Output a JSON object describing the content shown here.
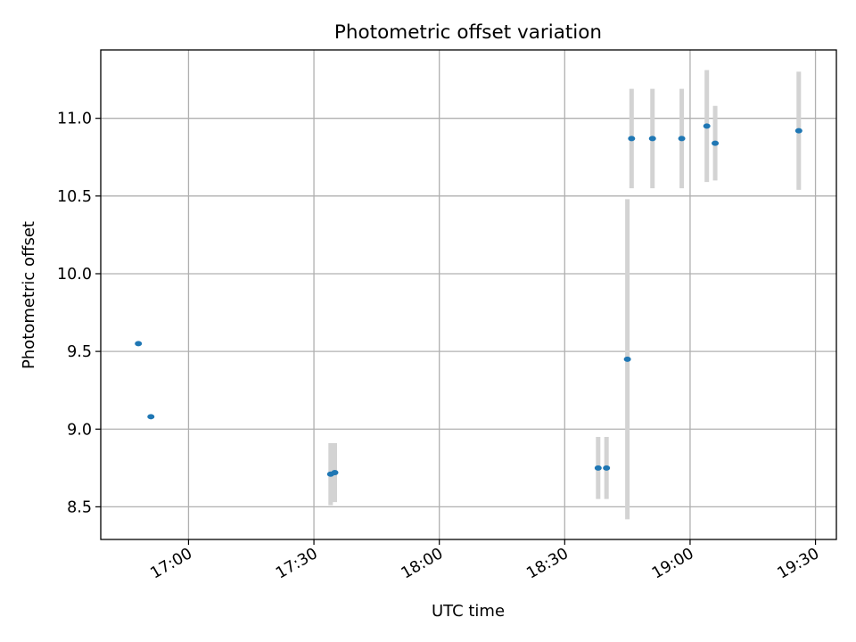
{
  "chart_data": {
    "type": "scatter",
    "title": "Photometric offset variation",
    "xlabel": "UTC time",
    "ylabel": "Photometric offset",
    "x_axis_type": "time",
    "xlim": [
      "16:39",
      "19:35"
    ],
    "ylim": [
      8.29,
      11.44
    ],
    "grid": true,
    "x_ticks": [
      "17:00",
      "17:30",
      "18:00",
      "18:30",
      "19:00",
      "19:30"
    ],
    "y_ticks": [
      8.5,
      9.0,
      9.5,
      10.0,
      10.5,
      11.0
    ],
    "y_tick_labels": [
      "8.5",
      "9.0",
      "9.5",
      "10.0",
      "10.5",
      "11.0"
    ],
    "colors": {
      "point": "#1f77b4",
      "errorbar": "#d3d3d3",
      "grid": "#b0b0b0"
    },
    "points": [
      {
        "x": "16:48",
        "y": 9.55,
        "err": null
      },
      {
        "x": "16:51",
        "y": 9.08,
        "err": null
      },
      {
        "x": "17:34",
        "y": 8.71,
        "err": 0.2
      },
      {
        "x": "17:35",
        "y": 8.72,
        "err": 0.19
      },
      {
        "x": "18:38",
        "y": 8.75,
        "err": 0.2
      },
      {
        "x": "18:40",
        "y": 8.75,
        "err": 0.2
      },
      {
        "x": "18:45",
        "y": 9.45,
        "err": 1.03
      },
      {
        "x": "18:46",
        "y": 10.87,
        "err": 0.32
      },
      {
        "x": "18:51",
        "y": 10.87,
        "err": 0.32
      },
      {
        "x": "18:58",
        "y": 10.87,
        "err": 0.32
      },
      {
        "x": "19:04",
        "y": 10.95,
        "err": 0.36
      },
      {
        "x": "19:06",
        "y": 10.84,
        "err": 0.24
      },
      {
        "x": "19:26",
        "y": 10.92,
        "err": 0.38
      }
    ]
  }
}
